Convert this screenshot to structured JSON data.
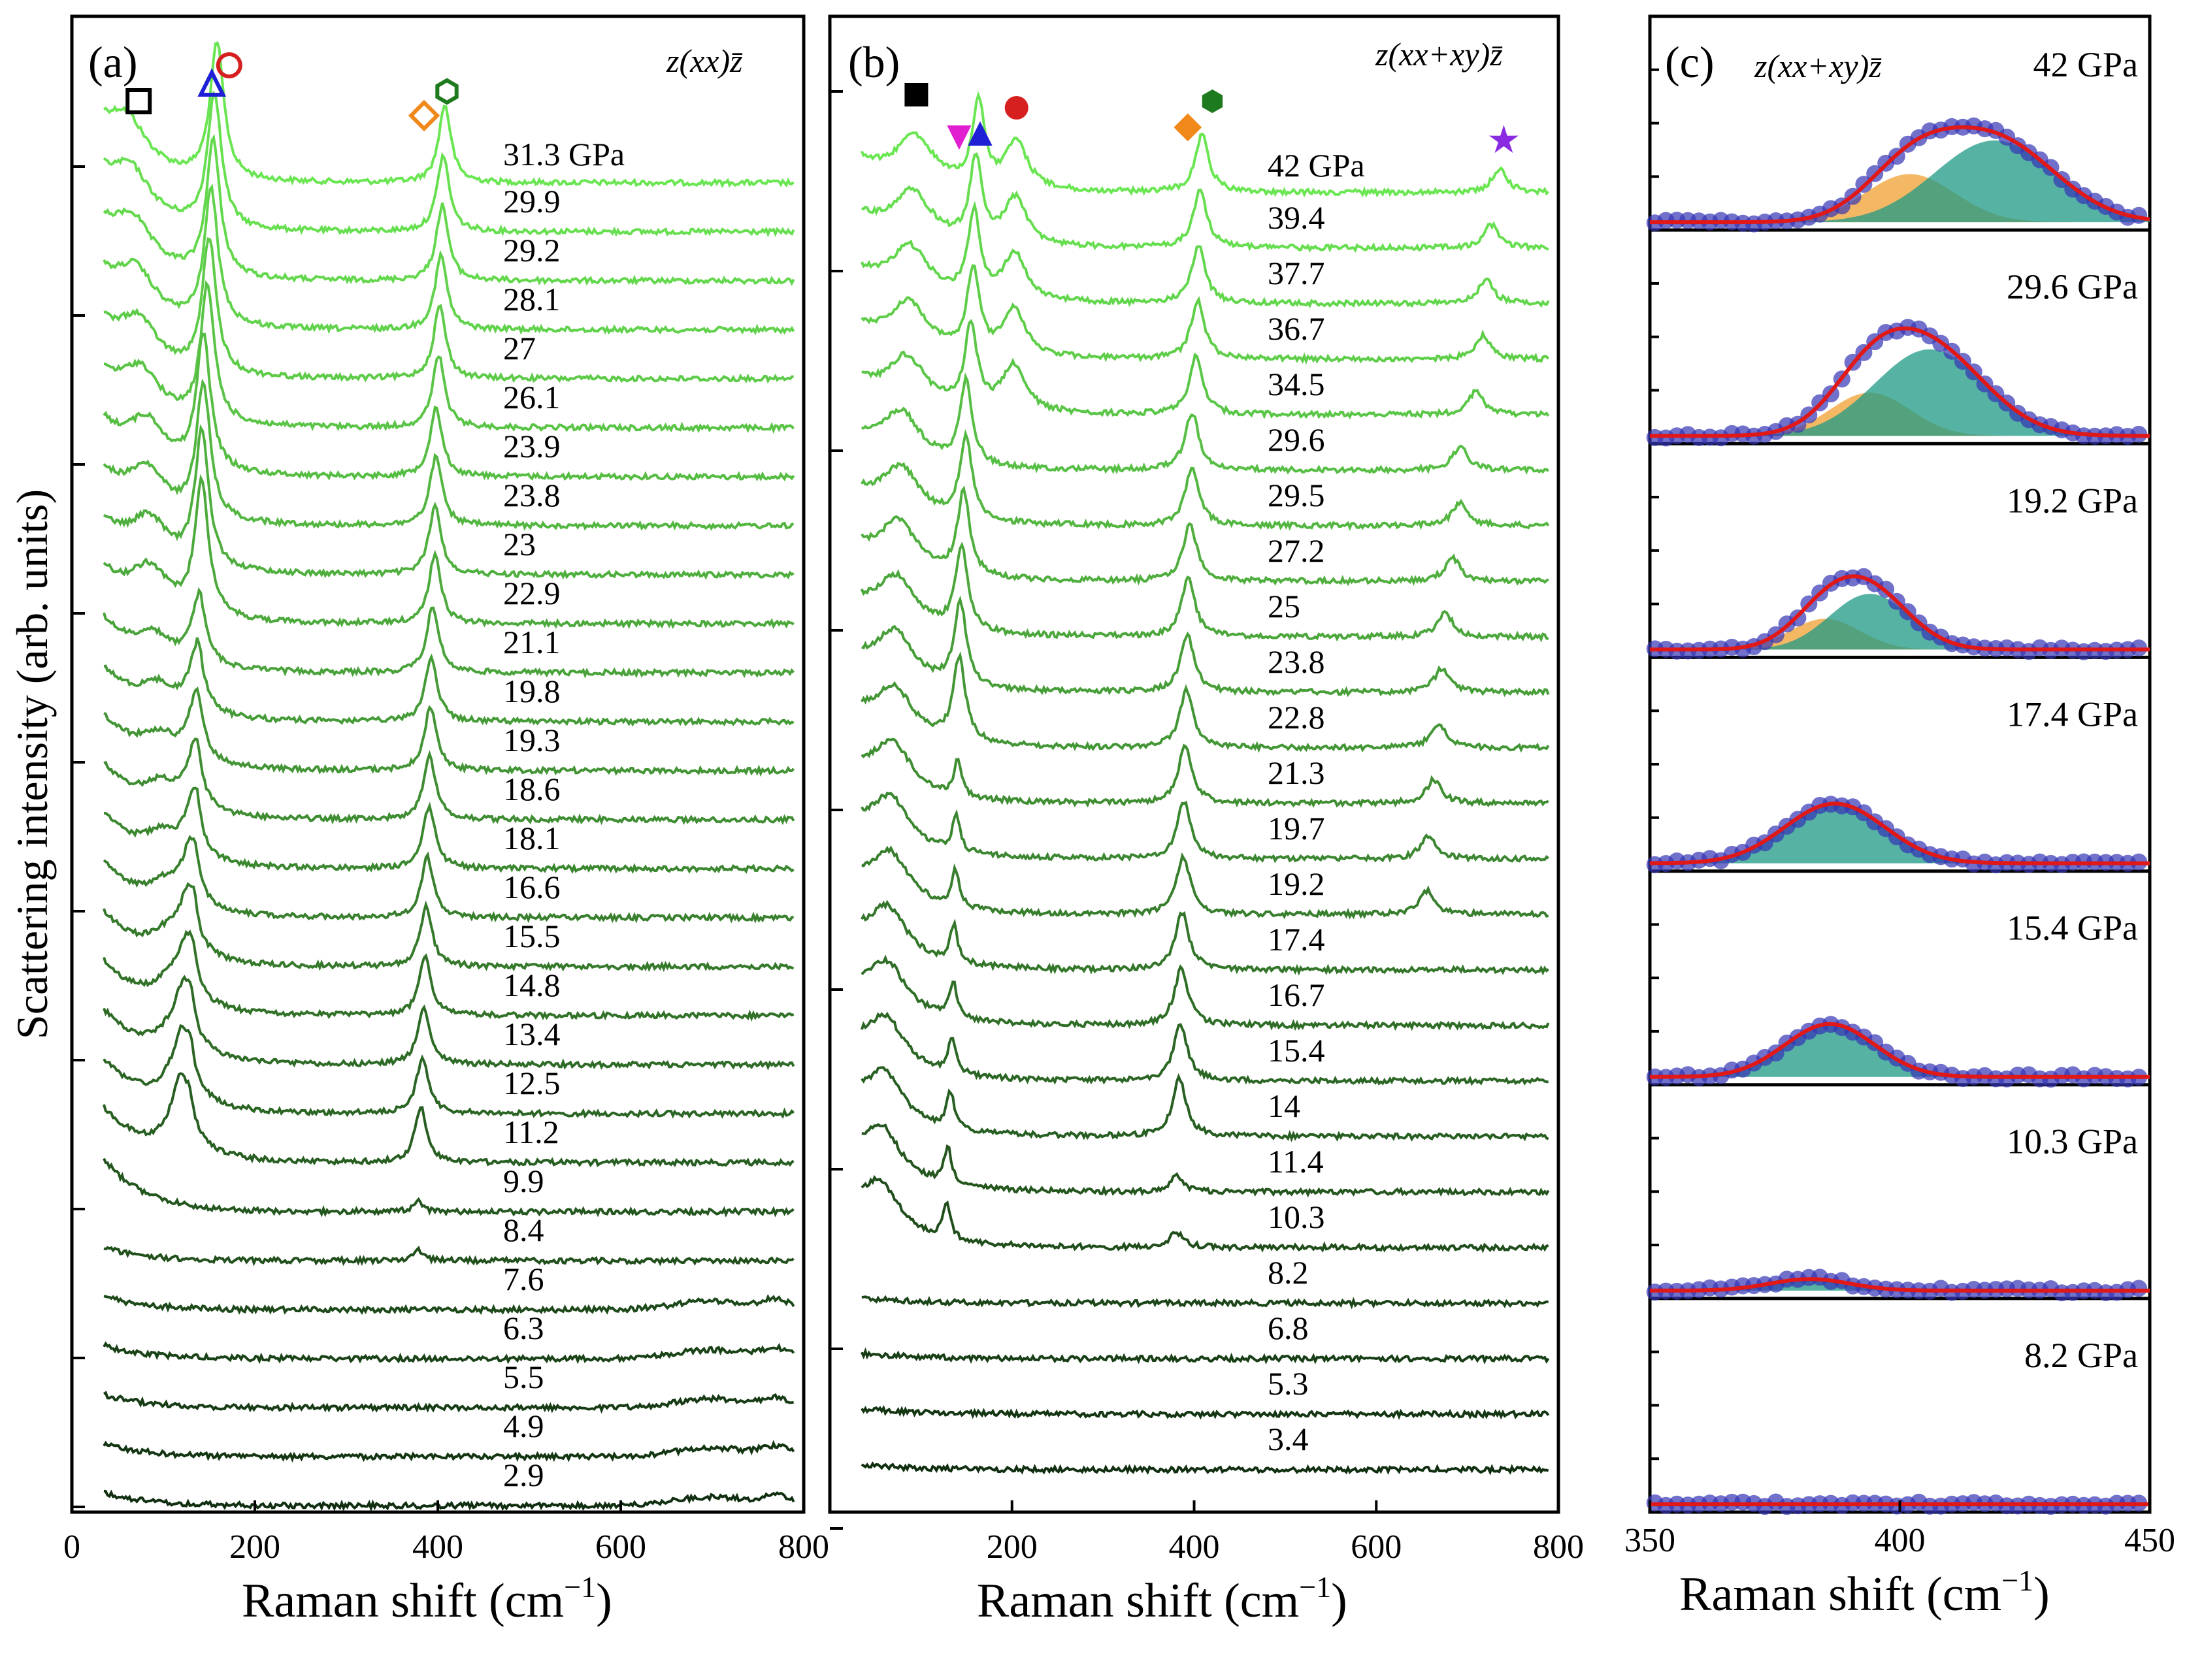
{
  "chart_data": [
    {
      "type": "line",
      "panel_label": "(a)",
      "geometry_label": "z(xx)z̄",
      "xlabel": "Raman shift (cm",
      "xlabel_sup": "−1",
      "xlabel_close": ")",
      "ylabel": "Scattering intensity (arb. units)",
      "xlim": [
        0,
        800
      ],
      "xticks": [
        "0",
        "200",
        "400",
        "600",
        "800"
      ],
      "x_range_data": [
        35,
        790
      ],
      "series_pressure_unit": "GPa",
      "top_series_label": "31.3 GPa",
      "series_labels": [
        "29.9",
        "29.2",
        "28.1",
        "27",
        "26.1",
        "23.9",
        "23.8",
        "23",
        "22.9",
        "21.1",
        "19.8",
        "19.3",
        "18.6",
        "18.1",
        "16.6",
        "15.5",
        "14.8",
        "13.4",
        "12.5",
        "11.2",
        "9.9",
        "8.4",
        "7.6",
        "6.3",
        "5.5",
        "4.9",
        "2.9"
      ],
      "highlighted_pressures": [
        "19.3",
        "8.4"
      ],
      "series_pressures_gpa": [
        31.3,
        29.9,
        29.2,
        28.1,
        27,
        26.1,
        23.9,
        23.8,
        23,
        22.9,
        21.1,
        19.8,
        19.3,
        18.6,
        18.1,
        16.6,
        15.5,
        14.8,
        13.4,
        12.5,
        11.2,
        9.9,
        8.4,
        7.6,
        6.3,
        5.5,
        4.9,
        2.9
      ],
      "peak_markers": [
        {
          "symbol": "open-square",
          "position_cm1": 73,
          "color": "#000000"
        },
        {
          "symbol": "open-triangle",
          "position_cm1": 153,
          "color": "#1f1fd6"
        },
        {
          "symbol": "open-circle",
          "position_cm1": 172,
          "color": "#d62020"
        },
        {
          "symbol": "open-diamond",
          "position_cm1": 385,
          "color": "#f0881a"
        },
        {
          "symbol": "open-hexagon",
          "position_cm1": 410,
          "color": "#1e7a1e"
        }
      ]
    },
    {
      "type": "line",
      "panel_label": "(b)",
      "geometry_label": "z(xx+xy)z̄",
      "xlabel": "Raman shift (cm",
      "xlabel_sup": "−1",
      "xlabel_close": ")",
      "xlim": [
        0,
        800
      ],
      "xticks": [
        "200",
        "400",
        "600",
        "800"
      ],
      "x_range_data": [
        35,
        790
      ],
      "series_pressure_unit": "GPa",
      "top_series_label": "42 GPa",
      "series_labels": [
        "39.4",
        "37.7",
        "36.7",
        "34.5",
        "29.6",
        "29.5",
        "27.2",
        "25",
        "23.8",
        "22.8",
        "21.3",
        "19.7",
        "19.2",
        "17.4",
        "16.7",
        "15.4",
        "14",
        "11.4",
        "10.3",
        "8.2",
        "6.8",
        "5.3",
        "3.4"
      ],
      "highlighted_pressures": [
        "19.2",
        "10.3"
      ],
      "series_pressures_gpa": [
        42,
        39.4,
        37.7,
        36.7,
        34.5,
        29.6,
        29.5,
        27.2,
        25,
        23.8,
        22.8,
        21.3,
        19.7,
        19.2,
        17.4,
        16.7,
        15.4,
        14,
        11.4,
        10.3,
        8.2,
        6.8,
        5.3,
        3.4
      ],
      "peak_markers": [
        {
          "symbol": "filled-square",
          "position_cm1": 95,
          "color": "#000000"
        },
        {
          "symbol": "filled-down-triangle",
          "position_cm1": 142,
          "color": "#e020d0"
        },
        {
          "symbol": "filled-triangle",
          "position_cm1": 165,
          "color": "#1f1fd6"
        },
        {
          "symbol": "filled-circle",
          "position_cm1": 205,
          "color": "#d62020"
        },
        {
          "symbol": "filled-diamond",
          "position_cm1": 393,
          "color": "#f0881a"
        },
        {
          "symbol": "filled-hexagon",
          "position_cm1": 420,
          "color": "#1e7a1e"
        },
        {
          "symbol": "filled-star",
          "position_cm1": 740,
          "color": "#8a2be2"
        }
      ]
    },
    {
      "type": "scatter",
      "panel_label": "(c)",
      "geometry_label": "z(xx+xy)z̄",
      "xlabel": "Raman shift (cm",
      "xlabel_sup": "−1",
      "xlabel_close": ")",
      "xlim": [
        350,
        450
      ],
      "xticks": [
        "350",
        "400",
        "450"
      ],
      "fit_colors": {
        "points": "#3535b5",
        "fit": "#e01818",
        "peak1": "#f0a030",
        "peak2": "#1e9a86"
      },
      "subplots": [
        {
          "label": "42 GPa",
          "peaks": [
            {
              "center": 402,
              "amplitude": 0.5,
              "width": 9
            },
            {
              "center": 419,
              "amplitude": 0.85,
              "width": 12
            }
          ]
        },
        {
          "label": "29.6 GPa",
          "peaks": [
            {
              "center": 394,
              "amplitude": 0.45,
              "width": 8
            },
            {
              "center": 406,
              "amplitude": 0.9,
              "width": 11
            }
          ]
        },
        {
          "label": "19.2 GPa",
          "peaks": [
            {
              "center": 385,
              "amplitude": 0.32,
              "width": 7
            },
            {
              "center": 394,
              "amplitude": 0.58,
              "width": 8
            }
          ]
        },
        {
          "label": "17.4 GPa",
          "peaks": [
            {
              "center": 387,
              "amplitude": 0.62,
              "width": 10
            }
          ]
        },
        {
          "label": "15.4 GPa",
          "peaks": [
            {
              "center": 386,
              "amplitude": 0.55,
              "width": 9
            }
          ]
        },
        {
          "label": "10.3 GPa",
          "peaks": [
            {
              "center": 382,
              "amplitude": 0.12,
              "width": 8
            }
          ]
        },
        {
          "label": "8.2 GPa",
          "peaks": []
        }
      ]
    }
  ]
}
